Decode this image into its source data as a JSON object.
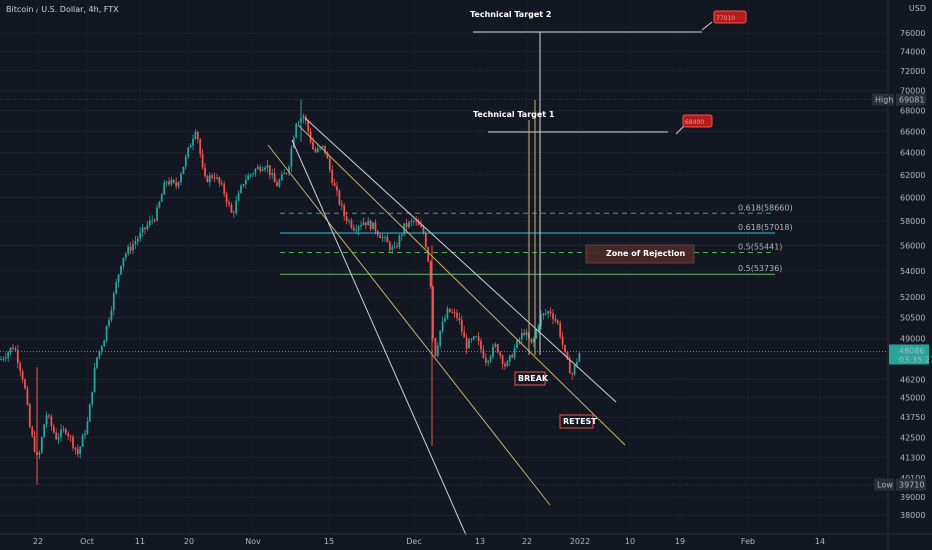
{
  "header": {
    "title": "Bitcoin / U.S. Dollar, 4h, FTX",
    "currency": "USD"
  },
  "chart_data": {
    "type": "candlestick",
    "title": "Bitcoin / U.S. Dollar, 4h, FTX",
    "ylim": [
      37200,
      78800
    ],
    "y_ticks": [
      38000,
      39000,
      40100,
      41300,
      42500,
      43750,
      45000,
      46200,
      47600,
      49000,
      50500,
      52000,
      54000,
      56000,
      58000,
      60000,
      62000,
      64000,
      66000,
      68000,
      70000,
      72000,
      74000,
      76000
    ],
    "x_ticks": [
      "22",
      "Oct",
      "11",
      "20",
      "Nov",
      "15",
      "Dec",
      "13",
      "22",
      "2022",
      "10",
      "19",
      "Feb",
      "14"
    ],
    "price_labels": {
      "high": {
        "label": "High",
        "value": "69081",
        "price": 69081
      },
      "low": {
        "label": "Low",
        "value": "39710",
        "price": 39710
      },
      "last": {
        "value": "48086",
        "countdown": "03:35:27",
        "price": 48086
      }
    },
    "levels": [
      {
        "label": "0.618(58660)",
        "price": 58660,
        "style": "dashed",
        "color": "#26a69a"
      },
      {
        "label": "0.618(57018)",
        "price": 57018,
        "style": "solid",
        "color": "#26c6da"
      },
      {
        "label": "0.5(55441)",
        "price": 55441,
        "style": "dashed",
        "color": "#4caf50"
      },
      {
        "label": "0.5(53736)",
        "price": 53736,
        "style": "solid",
        "color": "#66bb6a"
      }
    ],
    "annotations": {
      "target1": "Technical Target 1",
      "target2": "Technical Target 2",
      "zone": "Zone of Rejection",
      "break": "BREAK",
      "retest": "RETEST",
      "callout1": "68400",
      "callout2": "77010"
    },
    "candle_color_up": "#26a69a",
    "candle_color_down": "#ef5350"
  }
}
